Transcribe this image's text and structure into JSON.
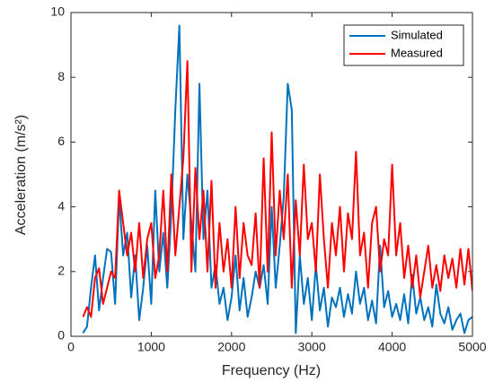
{
  "chart_data": {
    "type": "line",
    "xlabel": "Frequency (Hz)",
    "ylabel": "Acceleration (m/s²)",
    "x": [
      150,
      200,
      250,
      300,
      350,
      400,
      450,
      500,
      550,
      600,
      650,
      700,
      750,
      800,
      850,
      900,
      950,
      1000,
      1050,
      1100,
      1150,
      1200,
      1250,
      1300,
      1350,
      1400,
      1450,
      1500,
      1550,
      1600,
      1650,
      1700,
      1750,
      1800,
      1850,
      1900,
      1950,
      2000,
      2050,
      2100,
      2150,
      2200,
      2250,
      2300,
      2350,
      2400,
      2450,
      2500,
      2550,
      2600,
      2650,
      2700,
      2750,
      2800,
      2850,
      2900,
      2950,
      3000,
      3050,
      3100,
      3150,
      3200,
      3250,
      3300,
      3350,
      3400,
      3450,
      3500,
      3550,
      3600,
      3650,
      3700,
      3750,
      3800,
      3850,
      3900,
      3950,
      4000,
      4050,
      4100,
      4150,
      4200,
      4250,
      4300,
      4350,
      4400,
      4450,
      4500,
      4550,
      4600,
      4650,
      4700,
      4750,
      4800,
      4850,
      4900,
      4950,
      5000
    ],
    "series": [
      {
        "name": "Simulated",
        "color": "#0072bd",
        "values": [
          0.1,
          0.3,
          1.5,
          2.5,
          0.8,
          1.8,
          2.7,
          2.6,
          1.0,
          4.3,
          2.5,
          3.2,
          1.2,
          2.5,
          0.5,
          1.5,
          2.8,
          1.0,
          4.5,
          2.0,
          3.2,
          1.5,
          3.8,
          7.0,
          9.6,
          3.0,
          5.0,
          3.5,
          2.0,
          7.8,
          3.0,
          4.5,
          1.5,
          2.2,
          1.0,
          1.5,
          0.5,
          1.2,
          2.5,
          0.8,
          1.8,
          0.6,
          1.2,
          2.0,
          1.5,
          2.2,
          1.0,
          4.0,
          1.5,
          2.8,
          4.3,
          7.8,
          7.0,
          0.1,
          2.5,
          1.0,
          1.8,
          0.5,
          2.2,
          0.8,
          1.5,
          0.3,
          1.2,
          0.9,
          1.5,
          0.6,
          1.3,
          0.7,
          2.0,
          1.0,
          1.5,
          0.5,
          1.1,
          0.4,
          2.8,
          0.9,
          1.4,
          0.6,
          1.0,
          0.5,
          1.3,
          0.4,
          1.9,
          0.7,
          1.2,
          0.5,
          0.9,
          0.3,
          1.6,
          0.7,
          0.4,
          0.9,
          0.2,
          0.5,
          0.7,
          0.1,
          0.5,
          0.6
        ]
      },
      {
        "name": "Measured",
        "color": "#ff0000",
        "values": [
          0.6,
          0.9,
          0.6,
          1.8,
          2.1,
          1.0,
          1.5,
          2.0,
          1.8,
          4.5,
          3.5,
          2.5,
          3.2,
          2.0,
          3.5,
          1.8,
          3.0,
          3.5,
          1.8,
          2.5,
          4.5,
          2.0,
          5.0,
          2.5,
          4.0,
          5.5,
          8.5,
          2.0,
          5.2,
          3.0,
          4.5,
          2.0,
          4.8,
          1.5,
          3.5,
          2.0,
          3.0,
          1.5,
          4.0,
          1.8,
          3.5,
          2.5,
          2.2,
          3.8,
          1.5,
          5.5,
          2.0,
          6.3,
          2.5,
          4.5,
          3.0,
          5.0,
          1.5,
          4.2,
          2.5,
          5.3,
          3.0,
          3.5,
          2.0,
          5.0,
          3.0,
          1.5,
          3.5,
          2.5,
          4.0,
          2.0,
          3.8,
          3.0,
          5.7,
          2.5,
          3.2,
          1.5,
          3.5,
          4.0,
          2.0,
          3.0,
          2.5,
          5.3,
          2.5,
          3.5,
          1.8,
          2.8,
          1.5,
          2.5,
          1.2,
          2.0,
          2.8,
          1.5,
          2.2,
          1.4,
          2.5,
          1.8,
          2.4,
          1.5,
          2.7,
          1.6,
          2.7,
          1.4
        ]
      }
    ],
    "xlim": [
      0,
      5000
    ],
    "xticks": [
      0,
      1000,
      2000,
      3000,
      4000,
      5000
    ],
    "ylim": [
      0,
      10
    ],
    "yticks": [
      0,
      2,
      4,
      6,
      8,
      10
    ],
    "legend": "northeast",
    "grid": false
  }
}
